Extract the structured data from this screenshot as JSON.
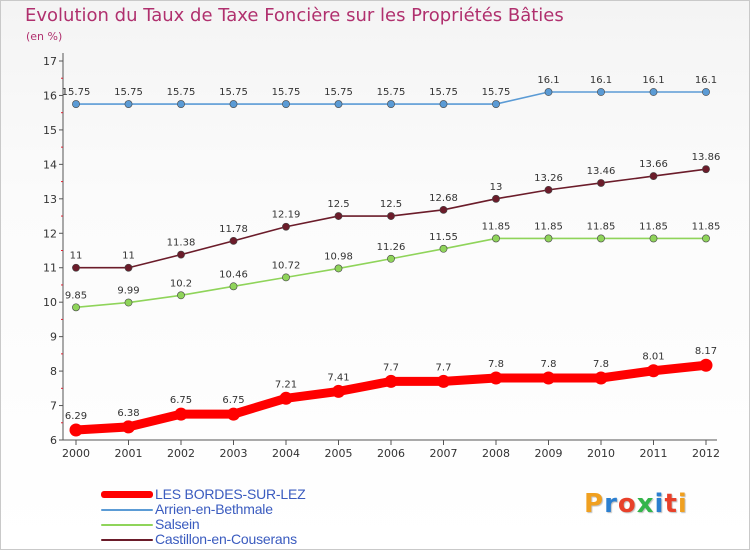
{
  "title": "Evolution du Taux de Taxe Foncière sur les Propriétés Bâties",
  "subtitle": "(en %)",
  "chart_data": {
    "type": "line",
    "x": [
      "2000",
      "2001",
      "2002",
      "2003",
      "2004",
      "2005",
      "2006",
      "2007",
      "2008",
      "2009",
      "2010",
      "2011",
      "2012"
    ],
    "yticks": [
      "6",
      "7",
      "8",
      "9",
      "10",
      "11",
      "12",
      "13",
      "14",
      "15",
      "16",
      "17"
    ],
    "ylim": [
      6,
      17
    ],
    "grid": false,
    "legend_position": "bottom-left",
    "series": [
      {
        "name": "LES BORDES-SUR-LEZ",
        "color": "#ff0000",
        "values": [
          6.29,
          6.38,
          6.75,
          6.75,
          7.21,
          7.41,
          7.7,
          7.7,
          7.8,
          7.8,
          7.8,
          8.01,
          8.17
        ],
        "labels": [
          "6.29",
          "6.38",
          "6.75",
          "6.75",
          "7.21",
          "7.41",
          "7.7",
          "7.7",
          "7.8",
          "7.8",
          "7.8",
          "8.01",
          "8.17"
        ]
      },
      {
        "name": "Arrien-en-Bethmale",
        "color": "#5b9bd5",
        "values": [
          15.75,
          15.75,
          15.75,
          15.75,
          15.75,
          15.75,
          15.75,
          15.75,
          15.75,
          16.1,
          16.1,
          16.1,
          16.1
        ],
        "labels": [
          "15.75",
          "15.75",
          "15.75",
          "15.75",
          "15.75",
          "15.75",
          "15.75",
          "15.75",
          "15.75",
          "16.1",
          "16.1",
          "16.1",
          "16.1"
        ]
      },
      {
        "name": "Salsein",
        "color": "#8fd45a",
        "values": [
          9.85,
          9.99,
          10.2,
          10.46,
          10.72,
          10.98,
          11.26,
          11.55,
          11.85,
          11.85,
          11.85,
          11.85,
          11.85
        ],
        "labels": [
          "9.85",
          "9.99",
          "10.2",
          "10.46",
          "10.72",
          "10.98",
          "11.26",
          "11.55",
          "11.85",
          "11.85",
          "11.85",
          "11.85",
          "11.85"
        ]
      },
      {
        "name": "Castillon-en-Couserans",
        "color": "#6b1c2a",
        "values": [
          11,
          11,
          11.38,
          11.78,
          12.19,
          12.5,
          12.5,
          12.68,
          13,
          13.26,
          13.46,
          13.66,
          13.86
        ],
        "labels": [
          "11",
          "11",
          "11.38",
          "11.78",
          "12.19",
          "12.5",
          "12.5",
          "12.68",
          "13",
          "13.26",
          "13.46",
          "13.66",
          "13.86"
        ]
      }
    ]
  },
  "logo": {
    "text": "Proxiti",
    "letter_colors": [
      "#f0a020",
      "#2b7fd0",
      "#e8402a",
      "#33b54a",
      "#2b7fd0",
      "#e8402a",
      "#f0a020"
    ]
  }
}
